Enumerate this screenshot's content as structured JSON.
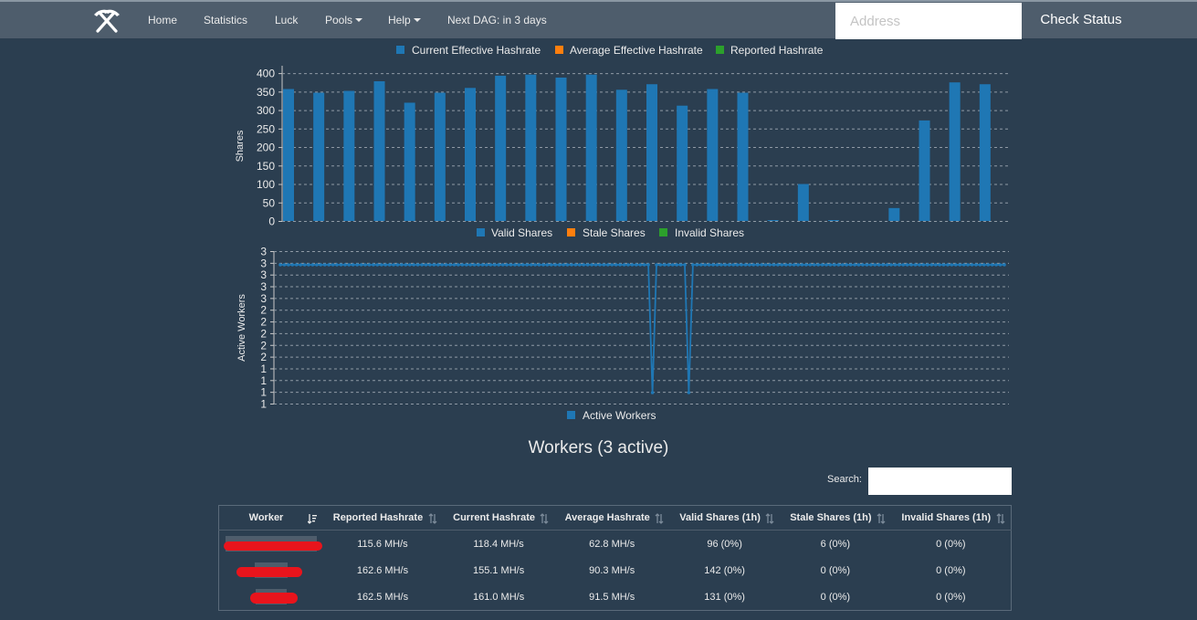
{
  "nav": {
    "brand_icon": "pickaxes-icon",
    "items": [
      {
        "label": "Home"
      },
      {
        "label": "Statistics"
      },
      {
        "label": "Luck"
      },
      {
        "label": "Pools"
      },
      {
        "label": "Help"
      },
      {
        "label": "Next DAG: in 3 days"
      }
    ],
    "address_placeholder": "Address",
    "check_label": "Check Status"
  },
  "colors": {
    "blue": "#1f77b4",
    "orange": "#ff7f0e",
    "green": "#2ca02c",
    "navbar": "#4e5d6c",
    "background": "#2b3e50"
  },
  "hashrate_legend": [
    "Current Effective Hashrate",
    "Average Effective Hashrate",
    "Reported Hashrate"
  ],
  "chart_data": [
    {
      "type": "bar",
      "ylabel": "Shares",
      "ylim": [
        0,
        420
      ],
      "yticks": [
        0,
        50,
        100,
        150,
        200,
        250,
        300,
        350,
        400
      ],
      "grid": true,
      "legend_position": "bottom",
      "legend": [
        "Valid Shares",
        "Stale Shares",
        "Invalid Shares"
      ],
      "series": [
        {
          "name": "Valid Shares",
          "values": [
            357,
            347,
            352,
            378,
            320,
            347,
            360,
            393,
            396,
            388,
            396,
            355,
            370,
            312,
            357,
            347,
            2,
            100,
            2,
            0,
            35,
            272,
            375,
            370
          ]
        }
      ]
    },
    {
      "type": "line",
      "ylabel": "Active Workers",
      "ytick_labels": [
        "3",
        "3",
        "3",
        "3",
        "3",
        "2",
        "2",
        "2",
        "2",
        "2",
        "1",
        "1",
        "1",
        "1"
      ],
      "grid": true,
      "legend_position": "bottom",
      "legend": [
        "Active Workers"
      ],
      "series": [
        {
          "name": "Active Workers",
          "values": [
            3,
            3,
            3,
            3,
            3,
            3,
            3,
            3,
            3,
            3,
            3,
            3,
            3,
            3,
            3,
            3,
            3,
            3,
            3,
            3,
            3,
            3,
            3,
            3,
            3,
            3,
            3,
            3,
            3,
            3,
            3,
            3,
            3,
            3,
            3,
            3,
            3,
            3,
            3,
            3,
            3,
            3,
            3,
            3,
            3,
            3,
            3,
            3,
            3,
            3,
            3,
            3,
            3,
            3,
            3,
            3,
            3,
            3,
            3,
            3,
            3,
            3,
            3,
            3,
            3,
            3,
            3,
            3,
            3,
            3,
            3,
            3,
            3,
            3,
            3,
            3,
            3,
            3,
            3,
            3,
            3,
            3,
            3,
            3,
            3,
            3,
            3,
            3,
            3,
            3,
            3,
            3,
            1,
            3,
            3,
            3,
            3,
            3,
            3,
            3,
            3,
            1,
            3,
            3,
            3,
            3,
            3,
            3,
            3,
            3,
            3,
            3,
            3,
            3,
            3,
            3,
            3,
            3,
            3,
            3,
            3,
            3,
            3,
            3,
            3,
            3,
            3,
            3,
            3,
            3,
            3,
            3,
            3,
            3,
            3,
            3,
            3,
            3,
            3,
            3,
            3,
            3,
            3,
            3,
            3,
            3,
            3,
            3,
            3,
            3,
            3,
            3,
            3,
            3,
            3,
            3,
            3,
            3,
            3,
            3,
            3,
            3,
            3,
            3,
            3,
            3,
            3,
            3,
            3,
            3,
            3,
            3,
            3,
            3,
            3,
            3,
            3,
            3,
            3,
            3
          ]
        }
      ]
    }
  ],
  "workers": {
    "title": "Workers (3 active)",
    "search_label": "Search:",
    "columns": [
      "Worker",
      "Reported Hashrate",
      "Current Hashrate",
      "Average Hashrate",
      "Valid Shares (1h)",
      "Stale Shares (1h)",
      "Invalid Shares (1h)"
    ],
    "rows": [
      [
        "",
        "115.6 MH/s",
        "118.4 MH/s",
        "62.8 MH/s",
        "96 (0%)",
        "6 (0%)",
        "0 (0%)"
      ],
      [
        "",
        "162.6 MH/s",
        "155.1 MH/s",
        "90.3 MH/s",
        "142 (0%)",
        "0 (0%)",
        "0 (0%)"
      ],
      [
        "",
        "162.5 MH/s",
        "161.0 MH/s",
        "91.5 MH/s",
        "131 (0%)",
        "0 (0%)",
        "0 (0%)"
      ]
    ]
  }
}
